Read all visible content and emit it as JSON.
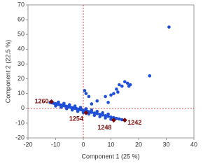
{
  "chart_data": {
    "type": "scatter",
    "x_label": "Component 1 (25 %)",
    "y_label": "Component 2 (22.5 %)",
    "xlim": [
      -20,
      40
    ],
    "xticks": [
      -20,
      -10,
      0,
      10,
      20,
      30,
      40
    ],
    "ylim": [
      -20,
      70
    ],
    "yticks": [
      -20,
      -10,
      0,
      10,
      20,
      30,
      40,
      50,
      60,
      70
    ],
    "series": [
      {
        "color": "#1f4fd8",
        "x": [
          -12,
          -11.5,
          -11,
          -10.5,
          -10,
          -9.5,
          -9,
          -8.5,
          -8,
          -7.5,
          -7,
          -6.5,
          -6,
          -5.5,
          -5,
          -4.5,
          -4,
          -3.5,
          -3,
          -2.5,
          -2,
          -1.5,
          -1,
          -0.5,
          0,
          0.5,
          1,
          1.5,
          2,
          3,
          4,
          5,
          6,
          7,
          8,
          9,
          10,
          11,
          12,
          13,
          14,
          -10,
          -8,
          -6,
          -4,
          -2,
          0,
          2,
          4,
          6,
          8,
          10,
          -9,
          -7,
          -5,
          -3,
          -1,
          1,
          3,
          5,
          7,
          9,
          31,
          24,
          16,
          15,
          14,
          13,
          12,
          11,
          10,
          8,
          1,
          2,
          5,
          17,
          16.5,
          12.5,
          9,
          3,
          0.5
        ],
        "y": [
          4,
          3.8,
          3.6,
          3.3,
          3.1,
          2.9,
          2.7,
          2.4,
          2.2,
          2,
          1.8,
          1.5,
          1.3,
          1.1,
          0.9,
          0.6,
          0.4,
          0.2,
          0,
          -0.2,
          -0.5,
          -0.7,
          -0.9,
          -1.1,
          -1.4,
          -1.6,
          -1.8,
          -2,
          -2.3,
          -2.7,
          -3.2,
          -3.6,
          -4.1,
          -4.5,
          -5,
          -5.4,
          -5.9,
          -6.3,
          -6.8,
          -7.2,
          -7.7,
          1.6,
          0.7,
          -0.2,
          -1.1,
          -2,
          -2.9,
          -3.8,
          -4.7,
          -5.6,
          -6.5,
          -7.4,
          4.2,
          3.3,
          2.4,
          1.5,
          0.6,
          -0.3,
          -1.2,
          -2.1,
          -3,
          -3.9,
          55,
          22,
          17,
          18,
          15,
          16,
          13,
          10,
          9,
          8,
          10,
          8,
          5,
          16,
          15,
          11,
          4,
          3,
          12
        ]
      },
      {
        "color": "#7a0a0a",
        "x": [
          -11.5,
          1,
          11,
          15
        ],
        "y": [
          4.5,
          -3,
          -8,
          -8
        ],
        "labels": [
          "1260",
          "1254",
          "1248",
          "1242"
        ]
      }
    ],
    "reference_lines": {
      "x": 0,
      "y": 0,
      "color": "#d02020"
    }
  }
}
